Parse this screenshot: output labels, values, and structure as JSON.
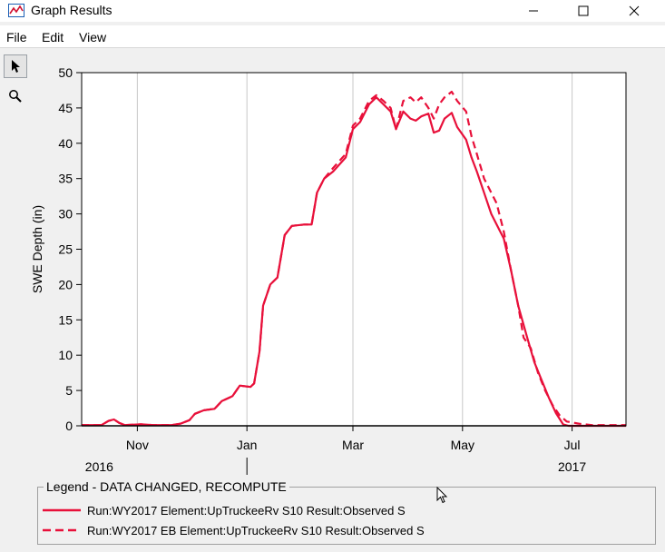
{
  "window": {
    "title": "Graph Results",
    "controls": [
      "minimize",
      "maximize",
      "close"
    ]
  },
  "menu": [
    {
      "label": "File"
    },
    {
      "label": "Edit"
    },
    {
      "label": "View"
    }
  ],
  "toolbar": {
    "tools": [
      {
        "name": "pointer-icon",
        "active": true
      },
      {
        "name": "zoom-icon",
        "active": false
      }
    ]
  },
  "chart_data": {
    "type": "line",
    "ylabel": "SWE Depth (in)",
    "xlabel": "",
    "ylim": [
      0,
      50
    ],
    "xlim": [
      "2016-10-01",
      "2017-07-31"
    ],
    "yticks": [
      0,
      5,
      10,
      15,
      20,
      25,
      30,
      35,
      40,
      45,
      50
    ],
    "xticks": [
      {
        "date": "2016-11-01",
        "label": "Nov",
        "year": "2016"
      },
      {
        "date": "2017-01-01",
        "label": "Jan",
        "year": ""
      },
      {
        "date": "2017-03-01",
        "label": "Mar",
        "year": ""
      },
      {
        "date": "2017-05-01",
        "label": "May",
        "year": ""
      },
      {
        "date": "2017-07-01",
        "label": "Jul",
        "year": "2017"
      }
    ],
    "grid": true,
    "series": [
      {
        "name": "Run:WY2017 Element:UpTruckeeRv  S10 Result:Observed S",
        "style": "solid",
        "color": "#e8103a",
        "points": [
          [
            "2016-10-01",
            0.1
          ],
          [
            "2016-10-12",
            0.1
          ],
          [
            "2016-10-16",
            0.7
          ],
          [
            "2016-10-19",
            0.9
          ],
          [
            "2016-10-22",
            0.4
          ],
          [
            "2016-10-25",
            0.1
          ],
          [
            "2016-11-03",
            0.2
          ],
          [
            "2016-11-10",
            0.1
          ],
          [
            "2016-11-20",
            0.1
          ],
          [
            "2016-11-25",
            0.3
          ],
          [
            "2016-11-30",
            0.8
          ],
          [
            "2016-12-03",
            1.7
          ],
          [
            "2016-12-08",
            2.2
          ],
          [
            "2016-12-14",
            2.4
          ],
          [
            "2016-12-18",
            3.5
          ],
          [
            "2016-12-24",
            4.2
          ],
          [
            "2016-12-28",
            5.7
          ],
          [
            "2017-01-03",
            5.5
          ],
          [
            "2017-01-05",
            6.0
          ],
          [
            "2017-01-08",
            10.5
          ],
          [
            "2017-01-10",
            17.0
          ],
          [
            "2017-01-14",
            20.0
          ],
          [
            "2017-01-18",
            21.0
          ],
          [
            "2017-01-22",
            27.0
          ],
          [
            "2017-01-26",
            28.3
          ],
          [
            "2017-02-02",
            28.5
          ],
          [
            "2017-02-06",
            28.5
          ],
          [
            "2017-02-09",
            33.0
          ],
          [
            "2017-02-13",
            35.0
          ],
          [
            "2017-02-18",
            36.0
          ],
          [
            "2017-02-25",
            38.0
          ],
          [
            "2017-03-01",
            42.0
          ],
          [
            "2017-03-05",
            43.0
          ],
          [
            "2017-03-10",
            45.5
          ],
          [
            "2017-03-14",
            46.5
          ],
          [
            "2017-03-18",
            45.5
          ],
          [
            "2017-03-22",
            44.5
          ],
          [
            "2017-03-25",
            42.0
          ],
          [
            "2017-03-29",
            44.5
          ],
          [
            "2017-04-02",
            43.5
          ],
          [
            "2017-04-05",
            43.2
          ],
          [
            "2017-04-08",
            43.8
          ],
          [
            "2017-04-12",
            44.2
          ],
          [
            "2017-04-15",
            41.5
          ],
          [
            "2017-04-18",
            41.8
          ],
          [
            "2017-04-21",
            43.5
          ],
          [
            "2017-04-25",
            44.3
          ],
          [
            "2017-04-28",
            42.3
          ],
          [
            "2017-05-03",
            40.5
          ],
          [
            "2017-05-06",
            38.0
          ],
          [
            "2017-05-09",
            36.0
          ],
          [
            "2017-05-13",
            33.0
          ],
          [
            "2017-05-17",
            30.0
          ],
          [
            "2017-05-20",
            28.5
          ],
          [
            "2017-05-24",
            26.5
          ],
          [
            "2017-05-28",
            22.0
          ],
          [
            "2017-06-01",
            17.0
          ],
          [
            "2017-06-06",
            12.5
          ],
          [
            "2017-06-10",
            9.0
          ],
          [
            "2017-06-14",
            6.5
          ],
          [
            "2017-06-18",
            4.0
          ],
          [
            "2017-06-22",
            1.8
          ],
          [
            "2017-06-26",
            0.2
          ],
          [
            "2017-06-29",
            0.0
          ],
          [
            "2017-07-31",
            0.0
          ]
        ]
      },
      {
        "name": "Run:WY2017  EB Element:UpTruckeeRv  S10 Result:Observed S",
        "style": "dashed",
        "color": "#e8103a",
        "points": [
          [
            "2016-10-01",
            0.1
          ],
          [
            "2016-10-12",
            0.1
          ],
          [
            "2016-10-16",
            0.7
          ],
          [
            "2016-10-19",
            0.9
          ],
          [
            "2016-10-22",
            0.4
          ],
          [
            "2016-10-25",
            0.1
          ],
          [
            "2016-11-03",
            0.2
          ],
          [
            "2016-11-10",
            0.1
          ],
          [
            "2016-11-20",
            0.1
          ],
          [
            "2016-11-25",
            0.3
          ],
          [
            "2016-11-30",
            0.8
          ],
          [
            "2016-12-03",
            1.7
          ],
          [
            "2016-12-08",
            2.2
          ],
          [
            "2016-12-14",
            2.4
          ],
          [
            "2016-12-18",
            3.5
          ],
          [
            "2016-12-24",
            4.2
          ],
          [
            "2016-12-28",
            5.7
          ],
          [
            "2017-01-03",
            5.5
          ],
          [
            "2017-01-05",
            6.0
          ],
          [
            "2017-01-08",
            10.5
          ],
          [
            "2017-01-10",
            17.0
          ],
          [
            "2017-01-14",
            20.0
          ],
          [
            "2017-01-18",
            21.0
          ],
          [
            "2017-01-22",
            27.0
          ],
          [
            "2017-01-26",
            28.3
          ],
          [
            "2017-02-02",
            28.5
          ],
          [
            "2017-02-06",
            28.5
          ],
          [
            "2017-02-09",
            33.0
          ],
          [
            "2017-02-13",
            35.0
          ],
          [
            "2017-02-18",
            36.5
          ],
          [
            "2017-02-25",
            38.5
          ],
          [
            "2017-03-01",
            42.5
          ],
          [
            "2017-03-05",
            43.5
          ],
          [
            "2017-03-10",
            46.0
          ],
          [
            "2017-03-14",
            46.8
          ],
          [
            "2017-03-18",
            46.0
          ],
          [
            "2017-03-22",
            45.0
          ],
          [
            "2017-03-25",
            42.0
          ],
          [
            "2017-03-29",
            46.0
          ],
          [
            "2017-04-02",
            46.5
          ],
          [
            "2017-04-05",
            45.8
          ],
          [
            "2017-04-08",
            46.5
          ],
          [
            "2017-04-12",
            45.0
          ],
          [
            "2017-04-15",
            43.5
          ],
          [
            "2017-04-18",
            45.5
          ],
          [
            "2017-04-21",
            46.5
          ],
          [
            "2017-04-25",
            47.3
          ],
          [
            "2017-04-28",
            46.0
          ],
          [
            "2017-05-03",
            44.5
          ],
          [
            "2017-05-06",
            41.0
          ],
          [
            "2017-05-09",
            38.5
          ],
          [
            "2017-05-13",
            35.0
          ],
          [
            "2017-05-17",
            33.0
          ],
          [
            "2017-05-20",
            31.5
          ],
          [
            "2017-05-24",
            27.5
          ],
          [
            "2017-05-28",
            22.0
          ],
          [
            "2017-06-01",
            17.0
          ],
          [
            "2017-06-04",
            12.5
          ],
          [
            "2017-06-08",
            11.0
          ],
          [
            "2017-06-12",
            7.5
          ],
          [
            "2017-06-16",
            5.0
          ],
          [
            "2017-06-20",
            3.0
          ],
          [
            "2017-06-24",
            1.5
          ],
          [
            "2017-06-28",
            0.6
          ],
          [
            "2017-07-05",
            0.3
          ],
          [
            "2017-07-12",
            0.1
          ],
          [
            "2017-07-31",
            0.1
          ]
        ]
      }
    ]
  },
  "legend": {
    "title": "Legend - DATA CHANGED, RECOMPUTE",
    "items": [
      {
        "label": "Run:WY2017 Element:UpTruckeeRv  S10 Result:Observed S",
        "style": "solid",
        "color": "#e8103a"
      },
      {
        "label": "Run:WY2017  EB Element:UpTruckeeRv  S10 Result:Observed S",
        "style": "dashed",
        "color": "#e8103a"
      }
    ]
  }
}
